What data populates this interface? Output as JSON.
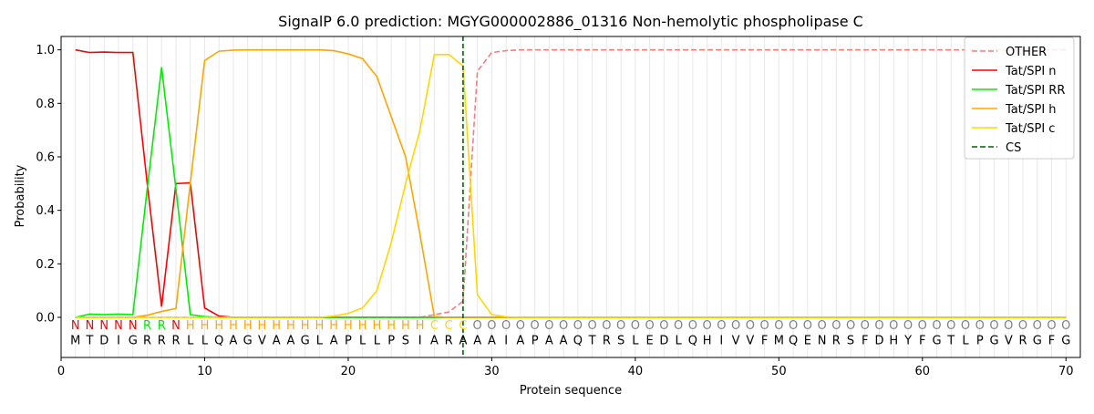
{
  "chart_data": {
    "type": "line",
    "title": "SignalP 6.0 prediction: MGYG000002886_01316 Non-hemolytic phospholipase C",
    "x_label": "Protein sequence",
    "y_label": "Probability",
    "xlim": [
      0,
      71
    ],
    "ylim": [
      -0.15,
      1.05
    ],
    "xticks": [
      0,
      10,
      20,
      30,
      40,
      50,
      60,
      70
    ],
    "yticks": [
      {
        "value": 0,
        "label": "0.0"
      },
      {
        "value": 0.2,
        "label": "0.2"
      },
      {
        "value": 0.4,
        "label": "0.4"
      },
      {
        "value": 0.6,
        "label": "0.6"
      },
      {
        "value": 0.8,
        "label": "0.8"
      },
      {
        "value": 1,
        "label": "1.0"
      }
    ],
    "legend": "upper right",
    "x": [
      1,
      2,
      3,
      4,
      5,
      6,
      7,
      8,
      9,
      10,
      11,
      12,
      13,
      14,
      15,
      16,
      17,
      18,
      19,
      20,
      21,
      22,
      23,
      24,
      25,
      26,
      27,
      28,
      29,
      30,
      31,
      32,
      33,
      34,
      35,
      36,
      37,
      38,
      39,
      40,
      41,
      42,
      43,
      44,
      45,
      46,
      47,
      48,
      49,
      50,
      51,
      52,
      53,
      54,
      55,
      56,
      57,
      58,
      59,
      60,
      61,
      62,
      63,
      64,
      65,
      66,
      67,
      68,
      69,
      70
    ],
    "series": [
      {
        "name": "OTHER",
        "color": "#f08080",
        "dash": true,
        "values": [
          0,
          0,
          0,
          0,
          0,
          0,
          0,
          0,
          0,
          0,
          0,
          0,
          0,
          0,
          0,
          0,
          0,
          0,
          0,
          0,
          0,
          0,
          0,
          0,
          0,
          0.01,
          0.02,
          0.06,
          0.92,
          0.99,
          0.997,
          1,
          1,
          1,
          1,
          1,
          1,
          1,
          1,
          1,
          1,
          1,
          1,
          1,
          1,
          1,
          1,
          1,
          1,
          1,
          1,
          1,
          1,
          1,
          1,
          1,
          1,
          1,
          1,
          1,
          1,
          1,
          1,
          1,
          1,
          1,
          1,
          1,
          1,
          1
        ]
      },
      {
        "name": "Tat/SPI n",
        "color": "#ff0000",
        "values": [
          1,
          0.99,
          0.992,
          0.99,
          0.99,
          0.5,
          0.04,
          0.5,
          0.503,
          0.035,
          0.005,
          0,
          0,
          0,
          0,
          0,
          0,
          0,
          0,
          0,
          0,
          0,
          0,
          0,
          0,
          0,
          0,
          0,
          0,
          0,
          0,
          0,
          0,
          0,
          0,
          0,
          0,
          0,
          0,
          0,
          0,
          0,
          0,
          0,
          0,
          0,
          0,
          0,
          0,
          0,
          0,
          0,
          0,
          0,
          0,
          0,
          0,
          0,
          0,
          0,
          0,
          0,
          0,
          0,
          0,
          0,
          0,
          0,
          0,
          0
        ]
      },
      {
        "name": "Tat/SPI RR",
        "color": "#00ee00",
        "values": [
          0,
          0.012,
          0.01,
          0.012,
          0.01,
          0.48,
          0.935,
          0.48,
          0.01,
          0.003,
          0,
          0,
          0,
          0,
          0,
          0,
          0,
          0,
          0,
          0,
          0,
          0,
          0,
          0,
          0,
          0,
          0,
          0,
          0,
          0,
          0,
          0,
          0,
          0,
          0,
          0,
          0,
          0,
          0,
          0,
          0,
          0,
          0,
          0,
          0,
          0,
          0,
          0,
          0,
          0,
          0,
          0,
          0,
          0,
          0,
          0,
          0,
          0,
          0,
          0,
          0,
          0,
          0,
          0,
          0,
          0,
          0,
          0,
          0,
          0
        ]
      },
      {
        "name": "Tat/SPI h",
        "color": "#ffa500",
        "values": [
          0,
          0,
          0,
          0,
          0,
          0.008,
          0.022,
          0.033,
          0.5,
          0.96,
          0.995,
          0.999,
          1,
          1,
          1,
          1,
          1,
          1,
          0.997,
          0.985,
          0.967,
          0.9,
          0.75,
          0.6,
          0.31,
          0.003,
          0,
          0,
          0,
          0,
          0,
          0,
          0,
          0,
          0,
          0,
          0,
          0,
          0,
          0,
          0,
          0,
          0,
          0,
          0,
          0,
          0,
          0,
          0,
          0,
          0,
          0,
          0,
          0,
          0,
          0,
          0,
          0,
          0,
          0,
          0,
          0,
          0,
          0,
          0,
          0,
          0,
          0,
          0,
          0
        ]
      },
      {
        "name": "Tat/SPI c",
        "color": "#ffd700",
        "values": [
          0,
          0,
          0,
          0,
          0,
          0,
          0,
          0,
          0,
          0,
          0,
          0,
          0,
          0,
          0,
          0,
          0,
          0,
          0.005,
          0.015,
          0.035,
          0.1,
          0.28,
          0.5,
          0.7,
          0.982,
          0.983,
          0.94,
          0.085,
          0.01,
          0.002,
          0,
          0,
          0,
          0,
          0,
          0,
          0,
          0,
          0,
          0,
          0,
          0,
          0,
          0,
          0,
          0,
          0,
          0,
          0,
          0,
          0,
          0,
          0,
          0,
          0,
          0,
          0,
          0,
          0,
          0,
          0,
          0,
          0,
          0,
          0,
          0,
          0,
          0,
          0
        ]
      }
    ],
    "cs": {
      "name": "CS",
      "position": 28,
      "color": "#006400"
    },
    "labels": [
      "N",
      "N",
      "N",
      "N",
      "N",
      "R",
      "R",
      "N",
      "H",
      "H",
      "H",
      "H",
      "H",
      "H",
      "H",
      "H",
      "H",
      "H",
      "H",
      "H",
      "H",
      "H",
      "H",
      "H",
      "H",
      "C",
      "C",
      "C",
      "O",
      "O",
      "O",
      "O",
      "O",
      "O",
      "O",
      "O",
      "O",
      "O",
      "O",
      "O",
      "O",
      "O",
      "O",
      "O",
      "O",
      "O",
      "O",
      "O",
      "O",
      "O",
      "O",
      "O",
      "O",
      "O",
      "O",
      "O",
      "O",
      "O",
      "O",
      "O",
      "O",
      "O",
      "O",
      "O",
      "O",
      "O",
      "O",
      "O",
      "O",
      "O"
    ],
    "label_colors": {
      "N": "#ff0000",
      "R": "#00ee00",
      "H": "#ffa500",
      "C": "#ffd700",
      "O": "#808080"
    },
    "sequence": [
      "M",
      "T",
      "D",
      "I",
      "G",
      "R",
      "R",
      "R",
      "L",
      "L",
      "Q",
      "A",
      "G",
      "V",
      "A",
      "A",
      "G",
      "L",
      "A",
      "P",
      "L",
      "L",
      "P",
      "S",
      "I",
      "A",
      "R",
      "A",
      "A",
      "A",
      "I",
      "A",
      "P",
      "A",
      "A",
      "Q",
      "T",
      "R",
      "S",
      "L",
      "E",
      "D",
      "L",
      "Q",
      "H",
      "I",
      "V",
      "V",
      "F",
      "M",
      "Q",
      "E",
      "N",
      "R",
      "S",
      "F",
      "D",
      "H",
      "Y",
      "F",
      "G",
      "T",
      "L",
      "P",
      "G",
      "V",
      "R",
      "G",
      "F",
      "G"
    ]
  }
}
